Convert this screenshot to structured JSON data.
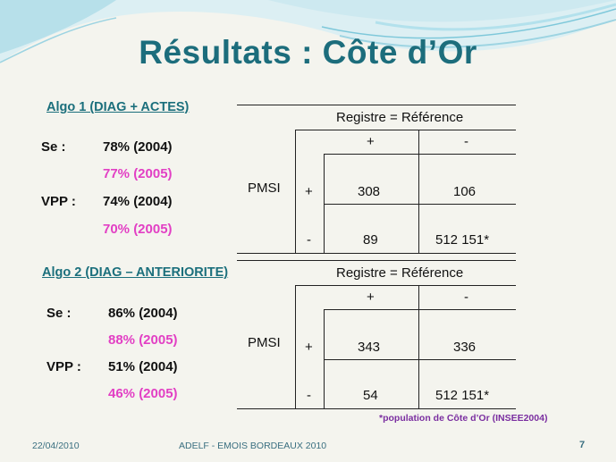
{
  "title": "Résultats : Côte d’Or",
  "algo1": {
    "heading": "Algo 1 (DIAG + ACTES)",
    "se_label": "Se :",
    "se_2004": "78% (2004)",
    "se_2005": "77% (2005)",
    "vpp_label": "VPP :",
    "vpp_2004": "74% (2004)",
    "vpp_2005": "70% (2005)",
    "table": {
      "header": "Registre = Référence",
      "col_plus": "+",
      "col_minus": "-",
      "row_label": "PMSI",
      "row_plus": "+",
      "row_minus": "-",
      "pp": "308",
      "pm": "106",
      "mp": "89",
      "mm": "512 151*"
    }
  },
  "algo2": {
    "heading": "Algo 2 (DIAG – ANTERIORITE)",
    "se_label": "Se :",
    "se_2004": "86% (2004)",
    "se_2005": "88% (2005)",
    "vpp_label": "VPP :",
    "vpp_2004": "51% (2004)",
    "vpp_2005": "46% (2005)",
    "table": {
      "header": "Registre = Référence",
      "col_plus": "+",
      "col_minus": "-",
      "row_label": "PMSI",
      "row_plus": "+",
      "row_minus": "-",
      "pp": "343",
      "pm": "336",
      "mp": "54",
      "mm": "512 151*"
    }
  },
  "note": "*population de Côte d’Or (INSEE2004)",
  "footer": {
    "date": "22/04/2010",
    "event": "ADELF - EMOIS BORDEAUX 2010",
    "page": "7"
  },
  "colors": {
    "title": "#1c6d7c",
    "magenta": "#e23fc4",
    "wave": "#6fc3d6"
  }
}
